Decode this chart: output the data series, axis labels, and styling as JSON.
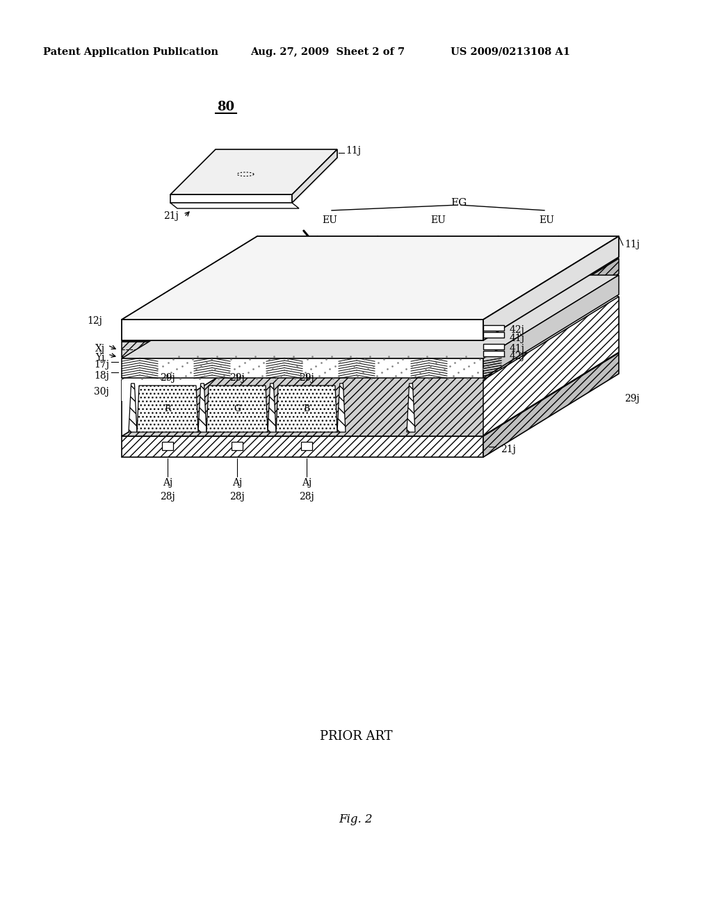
{
  "background_color": "#ffffff",
  "header_left": "Patent Application Publication",
  "header_center": "Aug. 27, 2009  Sheet 2 of 7",
  "header_right": "US 2009/0213108 A1",
  "footer_fig": "Fig. 2",
  "footer_prior": "PRIOR ART"
}
